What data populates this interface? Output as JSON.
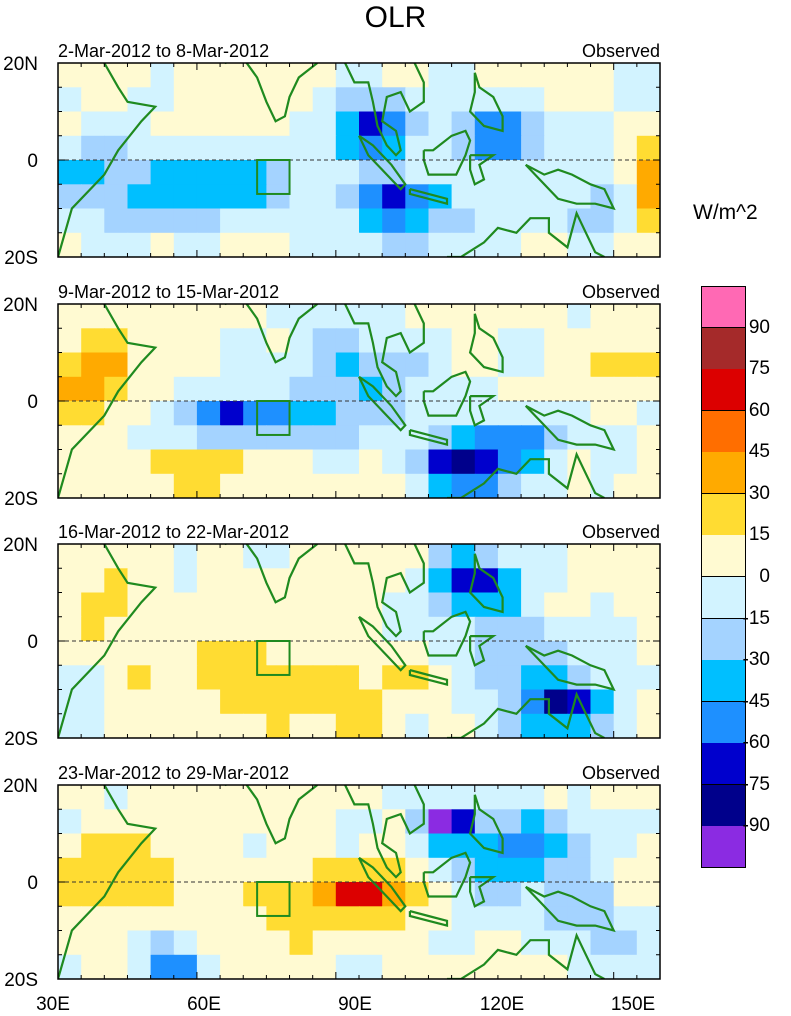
{
  "title": "OLR",
  "unit": "W/m^2",
  "colors": {
    "land": "#1f8a1f",
    "levels": [
      "#8b2be2",
      "#00008b",
      "#0000cd",
      "#1e90ff",
      "#00bfff",
      "#a4d3ff",
      "#d2f3ff",
      "#fffad2",
      "#ffdc32",
      "#ffaa00",
      "#ff6e00",
      "#dc0000",
      "#a52a2a",
      "#ff69b4"
    ]
  },
  "colorbar": {
    "labels": [
      "90",
      "75",
      "60",
      "45",
      "30",
      "15",
      "0",
      "-15",
      "-30",
      "-45",
      "-60",
      "-75",
      "-90"
    ]
  },
  "x_ticks": [
    "30E",
    "60E",
    "90E",
    "120E",
    "150E"
  ],
  "y_ticks": [
    "20N",
    "0",
    "20S"
  ],
  "panels": [
    {
      "date": "2-Mar-2012 to 8-Mar-2012",
      "status": "Observed"
    },
    {
      "date": "9-Mar-2012 to 15-Mar-2012",
      "status": "Observed"
    },
    {
      "date": "16-Mar-2012 to 22-Mar-2012",
      "status": "Observed"
    },
    {
      "date": "23-Mar-2012 to 29-Mar-2012",
      "status": "Observed"
    }
  ],
  "chart_data": {
    "type": "heatmap",
    "title": "OLR",
    "colorbar_label": "W/m^2",
    "levels": [
      -90,
      -75,
      -60,
      -45,
      -30,
      -15,
      0,
      15,
      30,
      45,
      60,
      75,
      90
    ],
    "xlim_lon": [
      30,
      160
    ],
    "ylim_lat": [
      -20,
      20
    ],
    "box_region": {
      "lon": [
        73,
        80
      ],
      "lat": [
        -7,
        0
      ]
    },
    "fields": [
      {
        "period": "2-Mar-2012 to 8-Mar-2012",
        "features": [
          {
            "lon": 40,
            "lat": -5,
            "sx": 18,
            "sy": 9,
            "amp": -40
          },
          {
            "lon": 68,
            "lat": -5,
            "sx": 14,
            "sy": 7,
            "amp": -45
          },
          {
            "lon": 98,
            "lat": 6,
            "sx": 8,
            "sy": 6,
            "amp": -80
          },
          {
            "lon": 103,
            "lat": -8,
            "sx": 10,
            "sy": 5,
            "amp": -75
          },
          {
            "lon": 125,
            "lat": 5,
            "sx": 11,
            "sy": 6,
            "amp": -65
          },
          {
            "lon": 148,
            "lat": -10,
            "sx": 8,
            "sy": 7,
            "amp": -40
          },
          {
            "lon": 158,
            "lat": -5,
            "sx": 6,
            "sy": 9,
            "amp": 40
          },
          {
            "lon": 110,
            "lat": -15,
            "sx": 25,
            "sy": 6,
            "amp": -20
          }
        ]
      },
      {
        "period": "9-Mar-2012 to 15-Mar-2012",
        "features": [
          {
            "lon": 37,
            "lat": 5,
            "sx": 8,
            "sy": 10,
            "amp": 35
          },
          {
            "lon": 75,
            "lat": -4,
            "sx": 16,
            "sy": 5,
            "amp": -55
          },
          {
            "lon": 66,
            "lat": -4,
            "sx": 5,
            "sy": 3,
            "amp": -40
          },
          {
            "lon": 96,
            "lat": 5,
            "sx": 14,
            "sy": 10,
            "amp": -40
          },
          {
            "lon": 118,
            "lat": -14,
            "sx": 9,
            "sy": 6,
            "amp": -95
          },
          {
            "lon": 130,
            "lat": -8,
            "sx": 10,
            "sy": 5,
            "amp": -60
          },
          {
            "lon": 60,
            "lat": -14,
            "sx": 20,
            "sy": 4,
            "amp": 20
          },
          {
            "lon": 152,
            "lat": 8,
            "sx": 8,
            "sy": 4,
            "amp": 20
          }
        ]
      },
      {
        "period": "16-Mar-2012 to 22-Mar-2012",
        "features": [
          {
            "lon": 120,
            "lat": 12,
            "sx": 10,
            "sy": 6,
            "amp": -70
          },
          {
            "lon": 140,
            "lat": -14,
            "sx": 10,
            "sy": 5,
            "amp": -85
          },
          {
            "lon": 80,
            "lat": -9,
            "sx": 22,
            "sy": 8,
            "amp": 25
          },
          {
            "lon": 42,
            "lat": 6,
            "sx": 8,
            "sy": 8,
            "amp": 20
          },
          {
            "lon": 128,
            "lat": -3,
            "sx": 14,
            "sy": 10,
            "amp": -35
          },
          {
            "lon": 35,
            "lat": -16,
            "sx": 6,
            "sy": 5,
            "amp": -20
          }
        ]
      },
      {
        "period": "23-Mar-2012 to 29-Mar-2012",
        "features": [
          {
            "lon": 113,
            "lat": 12,
            "sx": 5,
            "sy": 4,
            "amp": -95
          },
          {
            "lon": 124,
            "lat": 6,
            "sx": 12,
            "sy": 10,
            "amp": -45
          },
          {
            "lon": 90,
            "lat": -3,
            "sx": 22,
            "sy": 6,
            "amp": 35
          },
          {
            "lon": 97,
            "lat": -2,
            "sx": 5,
            "sy": 3,
            "amp": 35
          },
          {
            "lon": 40,
            "lat": 3,
            "sx": 10,
            "sy": 8,
            "amp": 25
          },
          {
            "lon": 55,
            "lat": -18,
            "sx": 6,
            "sy": 5,
            "amp": -60
          },
          {
            "lon": 145,
            "lat": -8,
            "sx": 10,
            "sy": 8,
            "amp": -35
          },
          {
            "lon": 135,
            "lat": 8,
            "sx": 12,
            "sy": 7,
            "amp": -25
          }
        ]
      }
    ]
  }
}
